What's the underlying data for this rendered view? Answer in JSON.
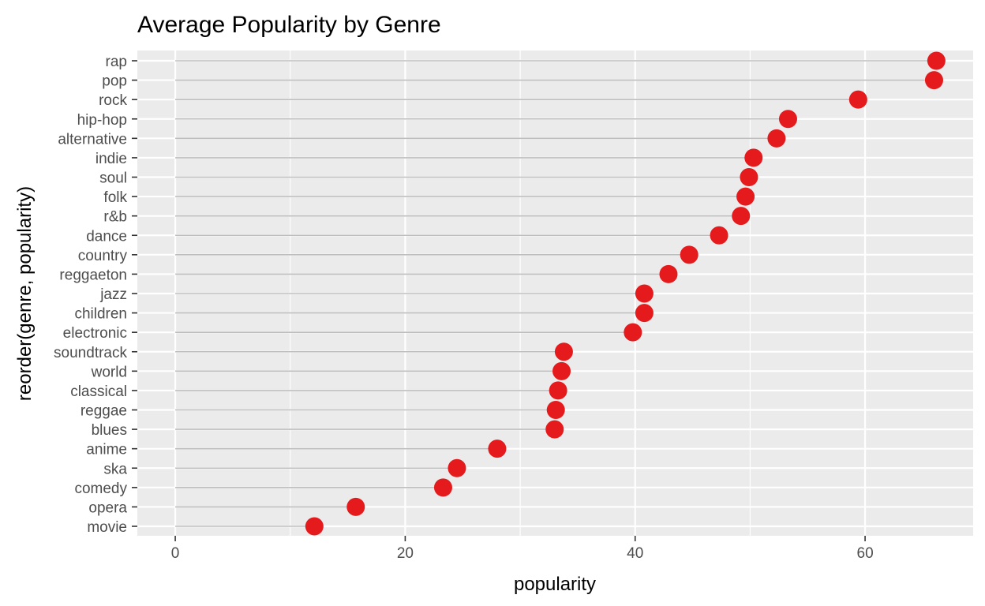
{
  "chart_data": {
    "type": "scatter",
    "title": "Average Popularity by Genre",
    "xlabel": "popularity",
    "ylabel": "reorder(genre, popularity)",
    "xlim": [
      -3.3,
      69.4
    ],
    "x_ticks": [
      0,
      20,
      40,
      60
    ],
    "x_tick_labels": [
      "0",
      "20",
      "40",
      "60"
    ],
    "grid": true,
    "legend": "none",
    "categories": [
      "rap",
      "pop",
      "rock",
      "hip-hop",
      "alternative",
      "indie",
      "soul",
      "folk",
      "r&b",
      "dance",
      "country",
      "reggaeton",
      "jazz",
      "children",
      "electronic",
      "soundtrack",
      "world",
      "classical",
      "reggae",
      "blues",
      "anime",
      "ska",
      "comedy",
      "opera",
      "movie"
    ],
    "values": [
      66.2,
      66.0,
      59.4,
      53.3,
      52.3,
      50.3,
      49.9,
      49.6,
      49.2,
      47.3,
      44.7,
      42.9,
      40.8,
      40.8,
      39.8,
      33.8,
      33.6,
      33.3,
      33.1,
      33.0,
      28.0,
      24.5,
      23.3,
      15.7,
      12.1
    ],
    "colors": {
      "point": "#e41a1c",
      "segment": "#bdbdbd",
      "panel_background": "#ebebeb",
      "grid": "#ffffff"
    }
  }
}
